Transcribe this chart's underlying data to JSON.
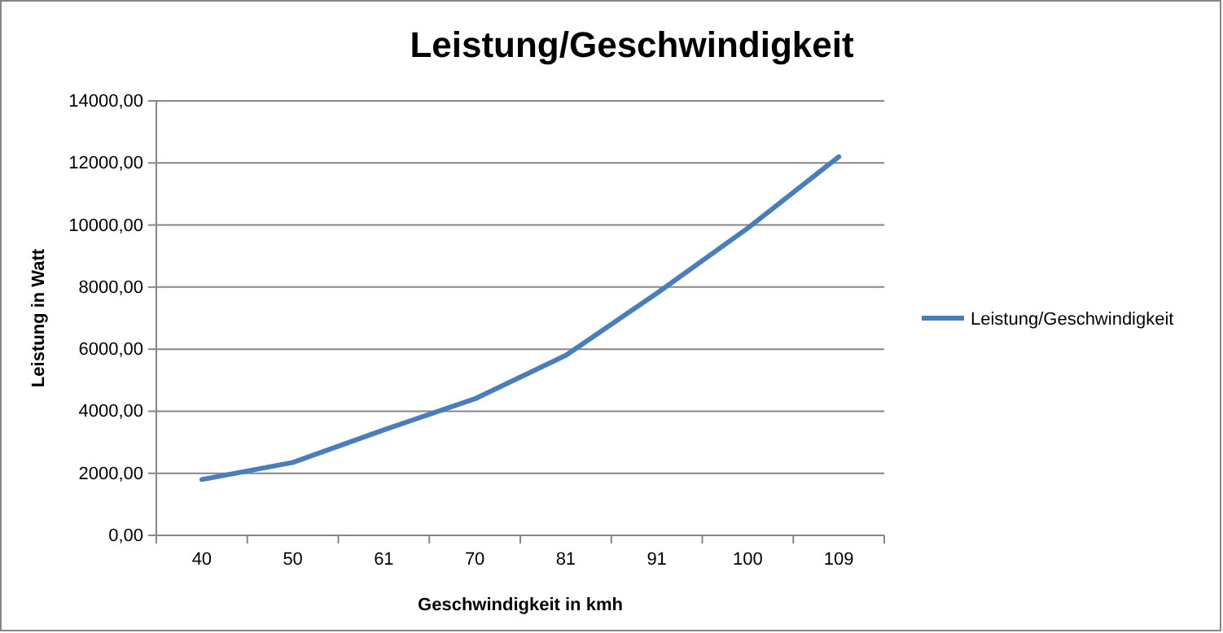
{
  "chart_data": {
    "type": "line",
    "title": "Leistung/Geschwindigkeit",
    "xlabel": "Geschwindigkeit  in kmh",
    "ylabel": "Leistung in Watt",
    "categories": [
      "40",
      "50",
      "61",
      "70",
      "81",
      "91",
      "100",
      "109"
    ],
    "series": [
      {
        "name": "Leistung/Geschwindigkeit",
        "color": "#4a7ebb",
        "values": [
          1800,
          2350,
          3400,
          4400,
          5800,
          7800,
          9900,
          12200
        ]
      }
    ],
    "ylim": [
      0,
      14000
    ],
    "yticks": [
      {
        "value": 0,
        "label": "0,00"
      },
      {
        "value": 2000,
        "label": "2000,00"
      },
      {
        "value": 4000,
        "label": "4000,00"
      },
      {
        "value": 6000,
        "label": "6000,00"
      },
      {
        "value": 8000,
        "label": "8000,00"
      },
      {
        "value": 10000,
        "label": "10000,00"
      },
      {
        "value": 12000,
        "label": "12000,00"
      },
      {
        "value": 14000,
        "label": "14000,00"
      }
    ],
    "grid": "y",
    "legend": "right",
    "marker": "none",
    "line_style": "solid"
  }
}
